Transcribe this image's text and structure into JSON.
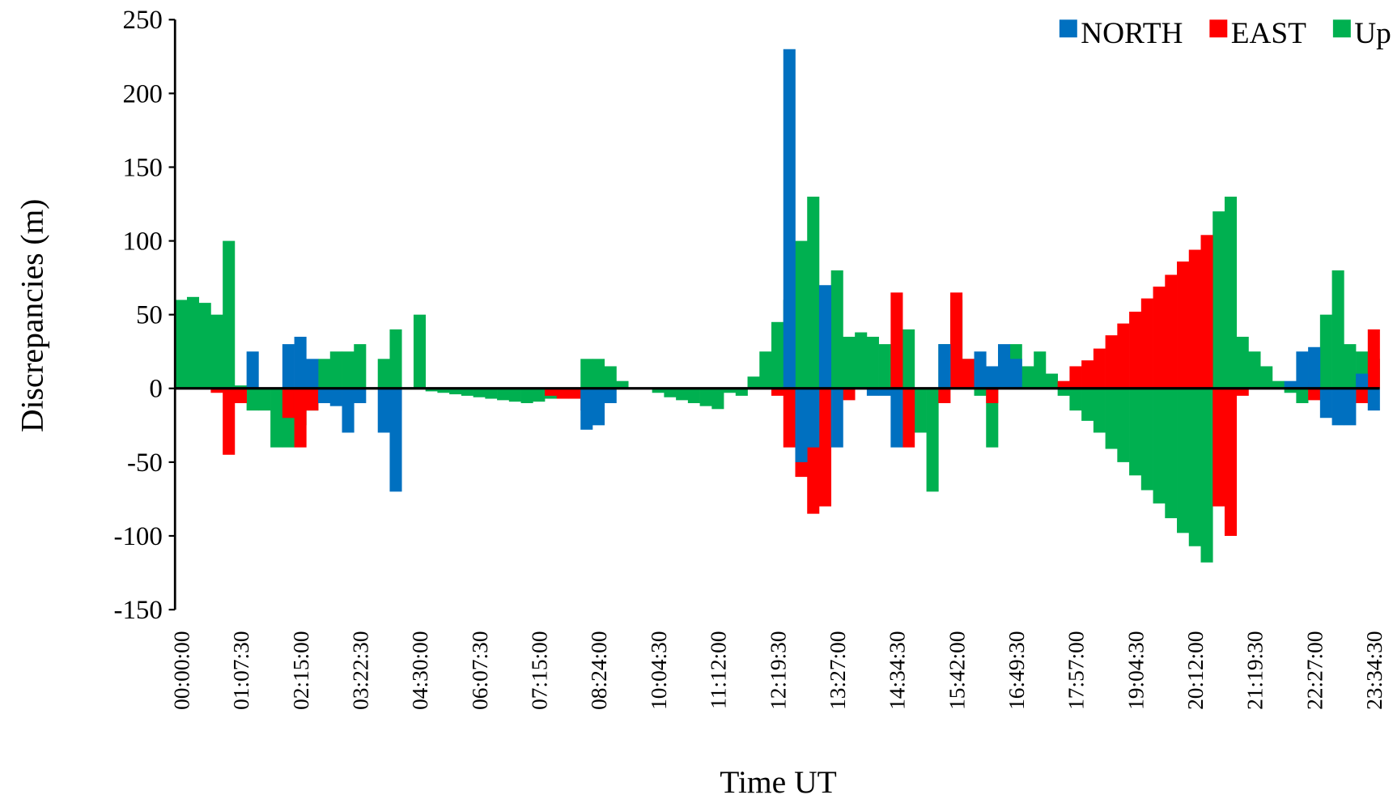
{
  "chart_data": {
    "type": "bar",
    "y_label": "Discrepancies (m)",
    "x_label": "Time UT",
    "categories": [
      "00:00:00",
      null,
      null,
      null,
      null,
      "01:07:30",
      null,
      null,
      null,
      null,
      "02:15:00",
      null,
      null,
      null,
      null,
      "03:22:30",
      null,
      null,
      null,
      null,
      "04:30:00",
      null,
      null,
      null,
      null,
      "06:07:30",
      null,
      null,
      null,
      null,
      "07:15:00",
      null,
      null,
      null,
      null,
      "08:24:00",
      null,
      null,
      null,
      null,
      "10:04:30",
      null,
      null,
      null,
      null,
      "11:12:00",
      null,
      null,
      null,
      null,
      "12:19:30",
      null,
      null,
      null,
      null,
      "13:27:00",
      null,
      null,
      null,
      null,
      "14:34:30",
      null,
      null,
      null,
      null,
      "15:42:00",
      null,
      null,
      null,
      null,
      "16:49:30",
      null,
      null,
      null,
      null,
      "17:57:00",
      null,
      null,
      null,
      null,
      "19:04:30",
      null,
      null,
      null,
      null,
      "20:12:00",
      null,
      null,
      null,
      null,
      "21:19:30",
      null,
      null,
      null,
      null,
      "22:27:00",
      null,
      null,
      null,
      null,
      "23:34:30"
    ],
    "series": [
      {
        "name": "NORTH",
        "color": "#0070c0",
        "values": [
          0,
          0,
          0,
          0,
          0,
          0,
          25,
          0,
          0,
          30,
          35,
          20,
          -10,
          -12,
          -30,
          -10,
          0,
          -30,
          -70,
          0,
          0,
          0,
          0,
          0,
          0,
          0,
          0,
          0,
          0,
          0,
          0,
          0,
          0,
          0,
          -28,
          -25,
          -10,
          0,
          0,
          0,
          0,
          0,
          0,
          0,
          0,
          0,
          0,
          0,
          0,
          0,
          0,
          230,
          -50,
          -40,
          70,
          -40,
          0,
          0,
          -5,
          -5,
          -40,
          0,
          0,
          0,
          30,
          0,
          0,
          25,
          15,
          30,
          20,
          0,
          0,
          0,
          0,
          0,
          0,
          0,
          0,
          0,
          0,
          0,
          0,
          0,
          0,
          0,
          0,
          0,
          0,
          0,
          0,
          0,
          0,
          5,
          25,
          28,
          -20,
          -25,
          -25,
          10,
          -15
        ]
      },
      {
        "name": "EAST",
        "color": "#ff0000",
        "values": [
          0,
          0,
          0,
          -3,
          -45,
          -10,
          0,
          0,
          0,
          -20,
          -40,
          -15,
          -10,
          -10,
          -8,
          0,
          0,
          0,
          -15,
          0,
          0,
          0,
          0,
          0,
          0,
          0,
          0,
          0,
          0,
          0,
          0,
          -5,
          -7,
          -7,
          -15,
          -12,
          0,
          0,
          0,
          0,
          0,
          0,
          0,
          0,
          0,
          0,
          0,
          0,
          0,
          0,
          -5,
          -40,
          -60,
          -85,
          -80,
          0,
          -8,
          0,
          0,
          0,
          65,
          -40,
          0,
          0,
          -10,
          65,
          20,
          0,
          -10,
          15,
          0,
          0,
          0,
          0,
          5,
          15,
          19,
          27,
          36,
          44,
          52,
          61,
          69,
          77,
          86,
          94,
          104,
          -80,
          -100,
          -5,
          0,
          0,
          0,
          0,
          5,
          -8,
          0,
          0,
          0,
          -10,
          40
        ]
      },
      {
        "name": "Up",
        "color": "#00b050",
        "values": [
          60,
          62,
          58,
          50,
          100,
          2,
          -15,
          -15,
          -40,
          -40,
          -25,
          -15,
          20,
          25,
          25,
          30,
          0,
          20,
          40,
          0,
          50,
          -2,
          -3,
          -4,
          -5,
          -6,
          -7,
          -8,
          -9,
          -10,
          -9,
          -7,
          0,
          -5,
          20,
          20,
          15,
          5,
          0,
          0,
          -3,
          -6,
          -8,
          -10,
          -12,
          -14,
          -3,
          -5,
          8,
          25,
          45,
          60,
          100,
          130,
          60,
          80,
          35,
          38,
          35,
          30,
          25,
          40,
          -30,
          -70,
          30,
          60,
          20,
          -5,
          -40,
          25,
          30,
          15,
          25,
          10,
          -5,
          -15,
          -22,
          -30,
          -41,
          -50,
          -59,
          -69,
          -78,
          -88,
          -98,
          -107,
          -118,
          120,
          130,
          35,
          25,
          15,
          5,
          -3,
          -10,
          20,
          50,
          80,
          30,
          25,
          20
        ]
      }
    ],
    "ylim": [
      -150,
      250
    ],
    "yticks": [
      -150,
      -100,
      -50,
      0,
      50,
      100,
      150,
      200,
      250
    ],
    "grid": false,
    "legend": "top-right"
  }
}
